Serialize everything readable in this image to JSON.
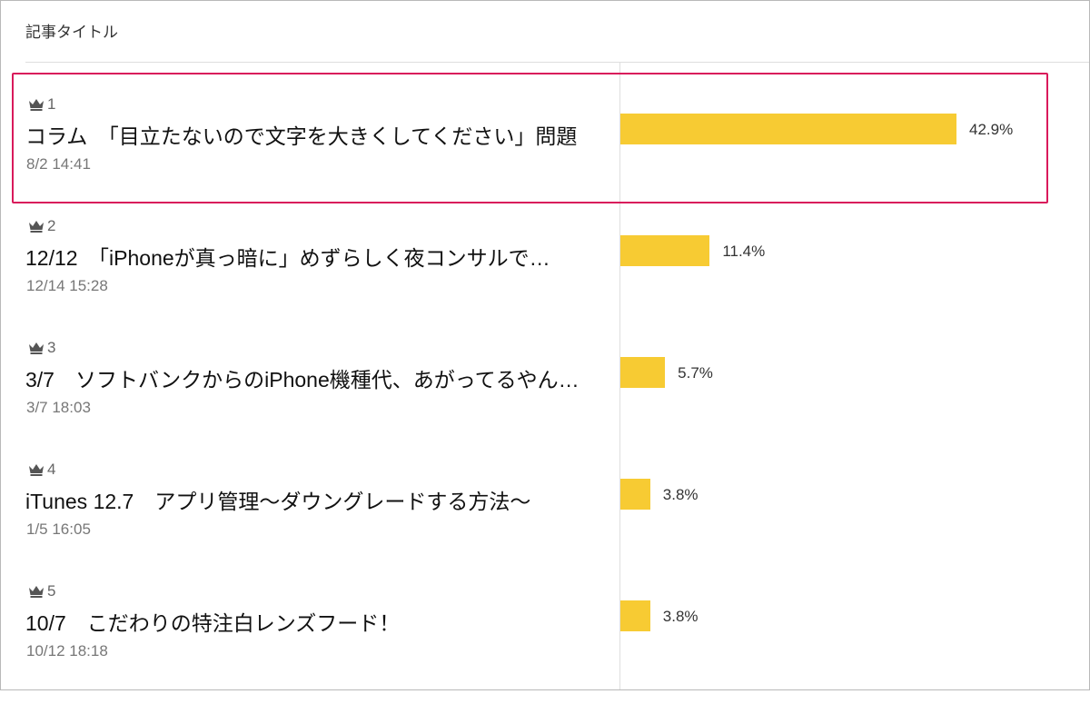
{
  "header": {
    "title": "記事タイトル"
  },
  "accent_bar_color": "#f7cb33",
  "highlight_color": "#d91a5b",
  "rows": [
    {
      "rank": "1",
      "title": "コラム　「目立たないので文字を大きくしてください」問題",
      "date": "8/2 14:41",
      "percent": "42.9%",
      "value": 42.9
    },
    {
      "rank": "2",
      "title": "12/12　「iPhoneが真っ暗に」めずらしく夜コンサルで…",
      "date": "12/14 15:28",
      "percent": "11.4%",
      "value": 11.4
    },
    {
      "rank": "3",
      "title": "3/7　ソフトバンクからのiPhone機種代、あがってるやん…",
      "date": "3/7 18:03",
      "percent": "5.7%",
      "value": 5.7
    },
    {
      "rank": "4",
      "title": "iTunes 12.7　アプリ管理〜ダウングレードする方法〜",
      "date": "1/5 16:05",
      "percent": "3.8%",
      "value": 3.8
    },
    {
      "rank": "5",
      "title": "10/7　こだわりの特注白レンズフード！",
      "date": "10/12 18:18",
      "percent": "3.8%",
      "value": 3.8
    }
  ]
}
